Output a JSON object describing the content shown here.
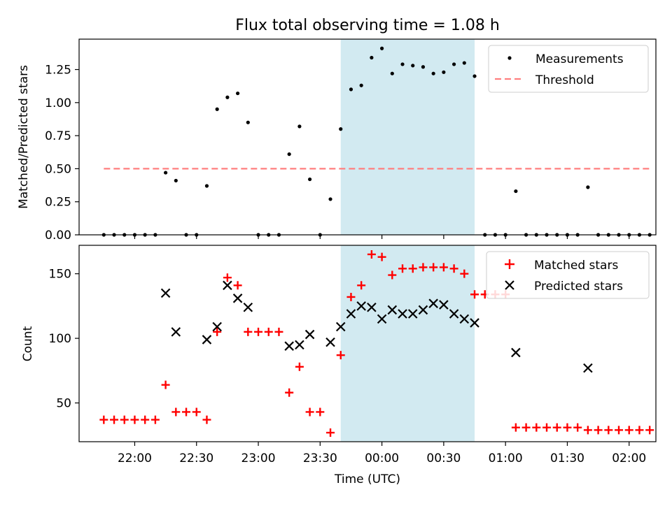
{
  "figure": {
    "title": "Flux total observing time = 1.08 h",
    "xlabel": "Time (UTC)"
  },
  "colors": {
    "shade": "#add8e6",
    "measurement": "#000000",
    "threshold": "#ff7f7f",
    "matched": "#ff0000",
    "predicted": "#000000"
  },
  "chart_data": [
    {
      "type": "scatter",
      "ylabel": "Matched/Predicted stars",
      "ylim": [
        0,
        1.48
      ],
      "yticks": [
        0.0,
        0.25,
        0.5,
        0.75,
        1.0,
        1.25
      ],
      "ytick_labels": [
        "0.00",
        "0.25",
        "0.50",
        "0.75",
        "1.00",
        "1.25"
      ],
      "xlim": [
        "21:33",
        "02:13"
      ],
      "shaded_span": [
        "23:40",
        "00:45"
      ],
      "grid": false,
      "legend_position": "top-right",
      "threshold": {
        "name": "Threshold",
        "value": 0.5,
        "x_range": [
          "21:45",
          "02:10"
        ]
      },
      "series": [
        {
          "name": "Measurements",
          "x": [
            "21:45",
            "21:50",
            "21:55",
            "22:00",
            "22:05",
            "22:10",
            "22:15",
            "22:20",
            "22:25",
            "22:30",
            "22:35",
            "22:40",
            "22:45",
            "22:50",
            "22:55",
            "23:00",
            "23:05",
            "23:10",
            "23:15",
            "23:20",
            "23:25",
            "23:30",
            "23:35",
            "23:40",
            "23:45",
            "23:50",
            "23:55",
            "00:00",
            "00:05",
            "00:10",
            "00:15",
            "00:20",
            "00:25",
            "00:30",
            "00:35",
            "00:40",
            "00:45",
            "00:50",
            "00:55",
            "01:00",
            "01:05",
            "01:10",
            "01:15",
            "01:20",
            "01:25",
            "01:30",
            "01:35",
            "01:40",
            "01:45",
            "01:50",
            "01:55",
            "02:00",
            "02:05",
            "02:10"
          ],
          "y": [
            0.0,
            0.0,
            0.0,
            0.0,
            0.0,
            0.0,
            0.47,
            0.41,
            0.0,
            0.0,
            0.37,
            0.95,
            1.04,
            1.07,
            0.85,
            0.0,
            0.0,
            0.0,
            0.61,
            0.82,
            0.42,
            0.0,
            0.27,
            0.8,
            1.1,
            1.13,
            1.34,
            1.41,
            1.22,
            1.29,
            1.28,
            1.27,
            1.22,
            1.23,
            1.29,
            1.3,
            1.2,
            0.0,
            0.0,
            0.0,
            0.33,
            0.0,
            0.0,
            0.0,
            0.0,
            0.0,
            0.0,
            0.36,
            0.0,
            0.0,
            0.0,
            0.0,
            0.0,
            0.0
          ]
        }
      ]
    },
    {
      "type": "scatter",
      "ylabel": "Count",
      "ylim": [
        20,
        172
      ],
      "yticks": [
        50,
        100,
        150
      ],
      "ytick_labels": [
        "50",
        "100",
        "150"
      ],
      "xlim": [
        "21:33",
        "02:13"
      ],
      "xticks": [
        "22:00",
        "22:30",
        "23:00",
        "23:30",
        "00:00",
        "00:30",
        "01:00",
        "01:30",
        "02:00"
      ],
      "shaded_span": [
        "23:40",
        "00:45"
      ],
      "grid": false,
      "legend_position": "top-right",
      "series": [
        {
          "name": "Matched stars",
          "x": [
            "21:45",
            "21:50",
            "21:55",
            "22:00",
            "22:05",
            "22:10",
            "22:15",
            "22:20",
            "22:25",
            "22:30",
            "22:35",
            "22:40",
            "22:45",
            "22:50",
            "22:55",
            "23:00",
            "23:05",
            "23:10",
            "23:15",
            "23:20",
            "23:25",
            "23:30",
            "23:35",
            "23:40",
            "23:45",
            "23:50",
            "23:55",
            "00:00",
            "00:05",
            "00:10",
            "00:15",
            "00:20",
            "00:25",
            "00:30",
            "00:35",
            "00:40",
            "00:45",
            "00:50",
            "00:55",
            "01:00",
            "01:05",
            "01:10",
            "01:15",
            "01:20",
            "01:25",
            "01:30",
            "01:35",
            "01:40",
            "01:45",
            "01:50",
            "01:55",
            "02:00",
            "02:05",
            "02:10"
          ],
          "y": [
            37,
            37,
            37,
            37,
            37,
            37,
            64,
            43,
            43,
            43,
            37,
            105,
            147,
            141,
            105,
            105,
            105,
            105,
            58,
            78,
            43,
            43,
            27,
            87,
            132,
            141,
            165,
            163,
            149,
            154,
            154,
            155,
            155,
            155,
            154,
            150,
            134,
            134,
            134,
            134,
            31,
            31,
            31,
            31,
            31,
            31,
            31,
            29,
            29,
            29,
            29,
            29,
            29,
            29
          ]
        },
        {
          "name": "Predicted stars",
          "x": [
            "22:15",
            "22:20",
            "22:35",
            "22:40",
            "22:45",
            "22:50",
            "22:55",
            "23:15",
            "23:20",
            "23:25",
            "23:35",
            "23:40",
            "23:45",
            "23:50",
            "23:55",
            "00:00",
            "00:05",
            "00:10",
            "00:15",
            "00:20",
            "00:25",
            "00:30",
            "00:35",
            "00:40",
            "00:45",
            "01:05",
            "01:40"
          ],
          "y": [
            135,
            105,
            99,
            109,
            141,
            131,
            124,
            94,
            95,
            103,
            97,
            109,
            119,
            125,
            124,
            115,
            122,
            119,
            119,
            122,
            127,
            126,
            119,
            115,
            112,
            89,
            77
          ]
        }
      ]
    }
  ]
}
